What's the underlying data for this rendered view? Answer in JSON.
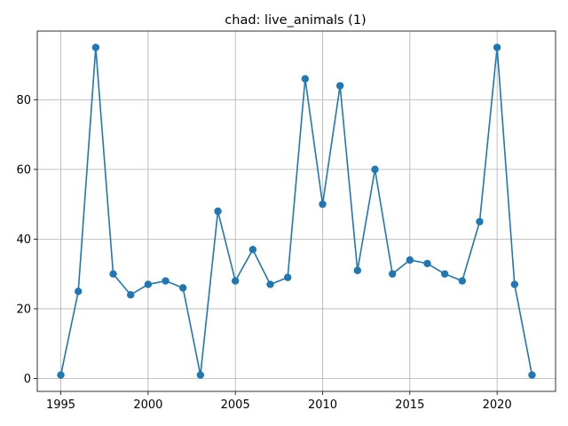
{
  "chart_data": {
    "type": "line",
    "title": "chad: live_animals (1)",
    "xlabel": "",
    "ylabel": "",
    "x": [
      1995,
      1996,
      1997,
      1998,
      1999,
      2000,
      2001,
      2002,
      2003,
      2004,
      2005,
      2006,
      2007,
      2008,
      2009,
      2010,
      2011,
      2012,
      2013,
      2014,
      2015,
      2016,
      2017,
      2018,
      2019,
      2020,
      2021,
      2022
    ],
    "series": [
      {
        "values": [
          1,
          25,
          95,
          30,
          24,
          27,
          28,
          26,
          1,
          48,
          28,
          37,
          27,
          29,
          86,
          50,
          84,
          31,
          60,
          30,
          34,
          33,
          30,
          28,
          45,
          95,
          27,
          1
        ]
      }
    ],
    "xlim": [
      1993.65,
      2023.35
    ],
    "ylim": [
      -3.7,
      99.7
    ],
    "xticks": [
      1995,
      2000,
      2005,
      2010,
      2015,
      2020
    ],
    "yticks": [
      0,
      20,
      40,
      60,
      80
    ],
    "grid": true,
    "marker": "circle",
    "color": "#1f77b4"
  }
}
